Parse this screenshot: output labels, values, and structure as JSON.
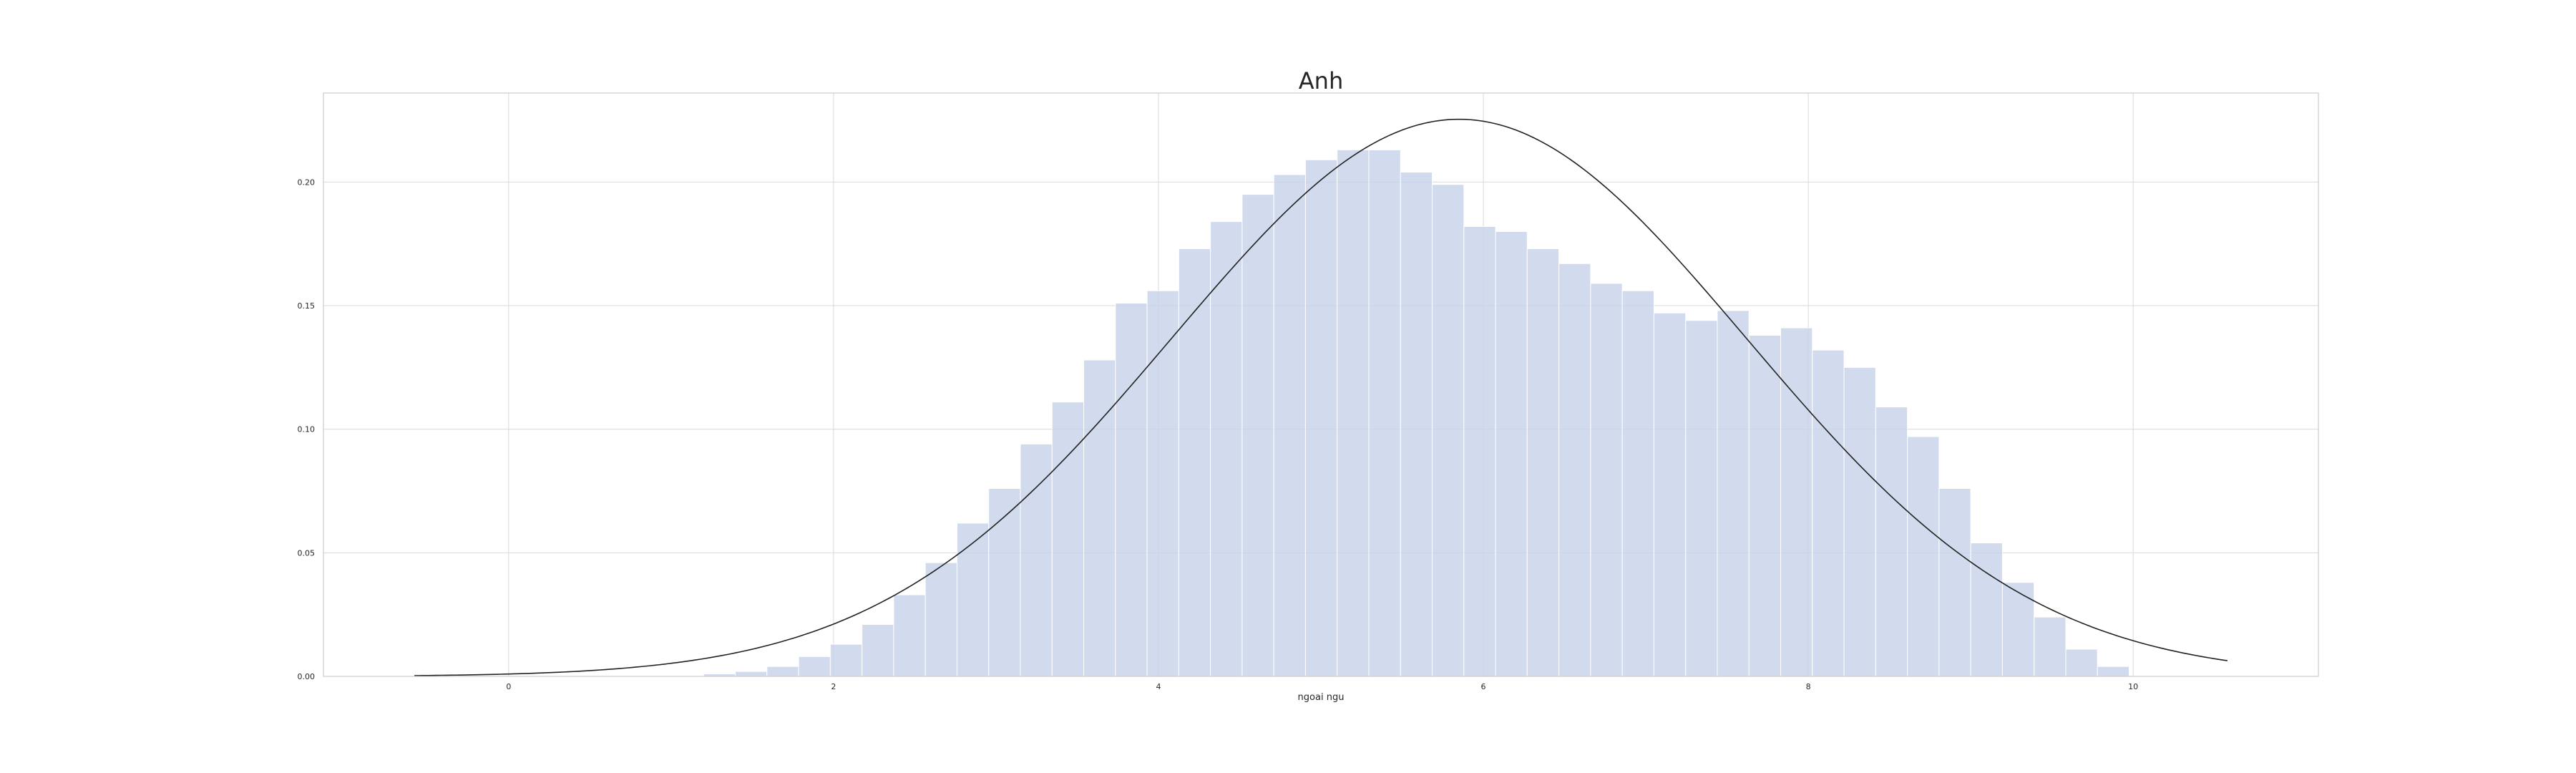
{
  "chart_data": {
    "type": "bar",
    "title": "Anh",
    "xlabel": "ngoai ngu",
    "ylabel": "",
    "xlim": [
      -1.14,
      11.14
    ],
    "ylim": [
      0,
      0.236
    ],
    "xticks": [
      0,
      2,
      4,
      6,
      8,
      10
    ],
    "xtick_labels": [
      "0",
      "2",
      "4",
      "6",
      "8",
      "10"
    ],
    "yticks": [
      0,
      0.05,
      0.1,
      0.15,
      0.2
    ],
    "ytick_labels": [
      "0.00",
      "0.05",
      "0.10",
      "0.15",
      "0.20"
    ],
    "grid": true,
    "legend": "none",
    "colors": {
      "bars": "#c5d2e8",
      "bar_edge": "#ffffff",
      "curve": "#222222",
      "grid": "#d9d9d9",
      "frame": "#cccccc"
    },
    "histogram": {
      "bin_width": 0.195,
      "bins_start": [
        1.2,
        1.395,
        1.59,
        1.785,
        1.98,
        2.175,
        2.37,
        2.565,
        2.76,
        2.955,
        3.15,
        3.345,
        3.54,
        3.735,
        3.93,
        4.125,
        4.32,
        4.515,
        4.71,
        4.905,
        5.1,
        5.295,
        5.49,
        5.685,
        5.88,
        6.075,
        6.27,
        6.465,
        6.66,
        6.855,
        7.05,
        7.245,
        7.44,
        7.635,
        7.83,
        8.025,
        8.22,
        8.415,
        8.61,
        8.805,
        9.0,
        9.195,
        9.39,
        9.585,
        9.78
      ],
      "density": [
        0.001,
        0.002,
        0.004,
        0.008,
        0.013,
        0.021,
        0.033,
        0.046,
        0.062,
        0.076,
        0.094,
        0.111,
        0.128,
        0.151,
        0.156,
        0.173,
        0.184,
        0.195,
        0.203,
        0.209,
        0.213,
        0.213,
        0.204,
        0.199,
        0.182,
        0.18,
        0.173,
        0.167,
        0.159,
        0.156,
        0.147,
        0.144,
        0.148,
        0.138,
        0.141,
        0.132,
        0.125,
        0.109,
        0.097,
        0.076,
        0.054,
        0.038,
        0.024,
        0.011,
        0.004
      ]
    },
    "curve": {
      "type": "normal-pdf",
      "mean": 5.85,
      "std": 1.77,
      "x_range": [
        -0.58,
        10.58
      ]
    }
  }
}
